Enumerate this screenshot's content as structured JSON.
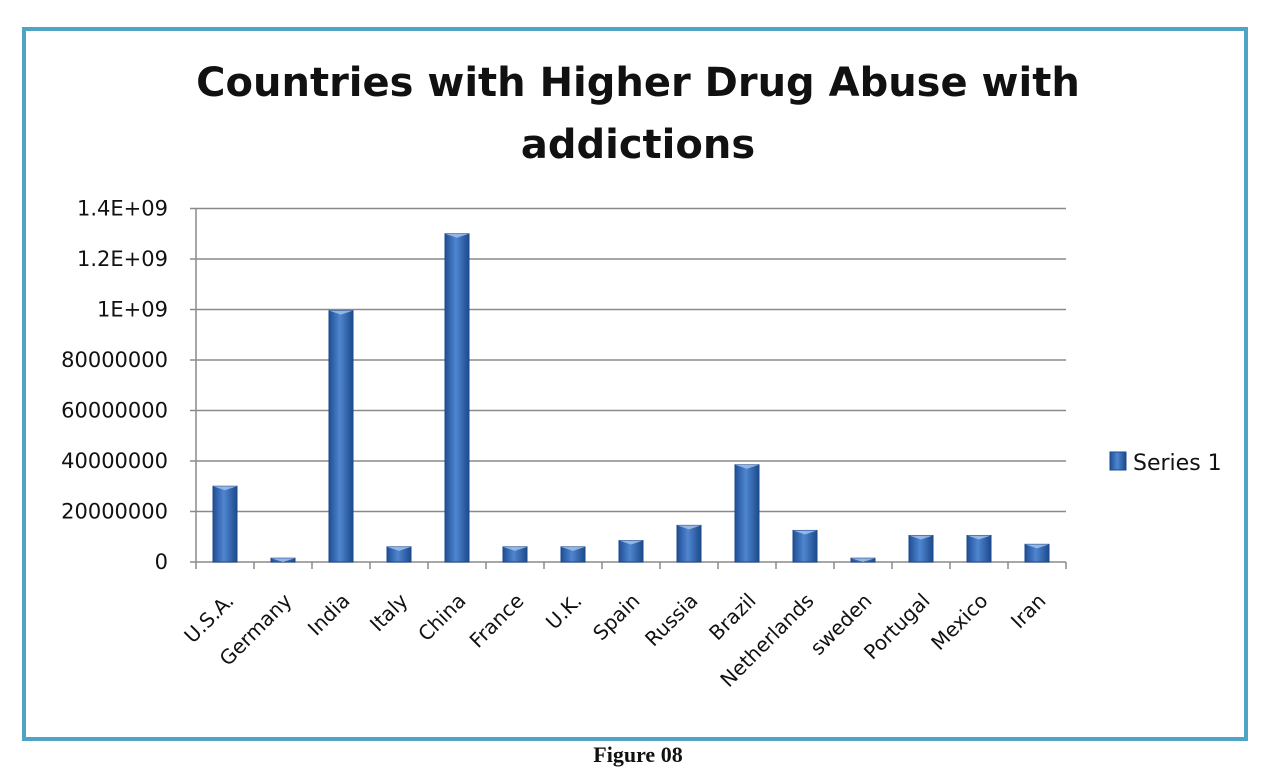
{
  "chart_data": {
    "type": "bar",
    "title_lines": [
      "Countries with Higher Drug Abuse with",
      "addictions"
    ],
    "xlabel": "",
    "ylabel": "",
    "categories": [
      "U.S.A.",
      "Germany",
      "India",
      "Italy",
      "China",
      "France",
      "U.K.",
      "Spain",
      "Russia",
      "Brazil",
      "Netherlands",
      "sweden",
      "Portugal",
      "Mexico",
      "Iran"
    ],
    "series": [
      {
        "name": "Series 1",
        "values": [
          30000000,
          1500000,
          980000000,
          6000000,
          1300000000,
          6000000,
          6000000,
          8500000,
          14500000,
          38500000,
          12500000,
          1500000,
          10500000,
          10500000,
          7000000
        ],
        "color": "#3b6fb6"
      }
    ],
    "y_tick_labels": [
      "0",
      "20000000",
      "40000000",
      "60000000",
      "80000000",
      "1E+09",
      "1.2E+09",
      "1.4E+09"
    ],
    "grid": true,
    "legend_position": "right"
  },
  "figure_caption": "Figure 08"
}
